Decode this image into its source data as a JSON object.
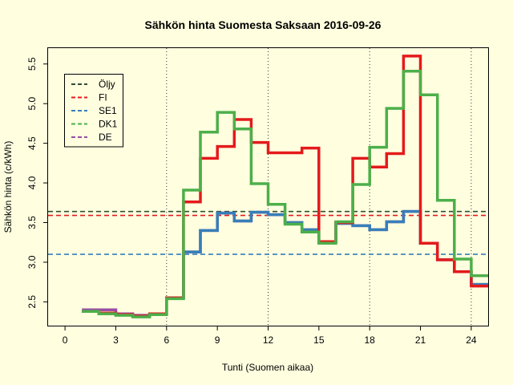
{
  "chart_data": {
    "type": "line",
    "title": "Sähkön hinta Suomesta Saksaan 2016-09-26",
    "xlabel": "Tunti (Suomen aikaa)",
    "ylabel": "Sähkön hinta (c/kWh)",
    "xlim": [
      -1,
      25
    ],
    "ylim": [
      2.2,
      5.7
    ],
    "xticks": [
      0,
      3,
      6,
      9,
      12,
      15,
      18,
      21,
      24
    ],
    "yticks": [
      2.5,
      3.0,
      3.5,
      4.0,
      4.5,
      5.0,
      5.5
    ],
    "vlines": [
      6,
      12,
      18,
      24
    ],
    "legend_position": "top-left",
    "legend": [
      {
        "name": "Öljy",
        "color": "#2f4f2f"
      },
      {
        "name": "FI",
        "color": "#e41a1c"
      },
      {
        "name": "SE1",
        "color": "#377eb8"
      },
      {
        "name": "DK1",
        "color": "#4daf4a"
      },
      {
        "name": "DE",
        "color": "#984ea3"
      }
    ],
    "hlines": [
      {
        "name": "Öljy",
        "color": "#2f4f2f",
        "value": 3.64
      },
      {
        "name": "FI",
        "color": "#e41a1c",
        "value": 3.59
      },
      {
        "name": "SE1",
        "color": "#377eb8",
        "value": 3.1
      }
    ],
    "x": [
      1,
      2,
      3,
      4,
      5,
      6,
      7,
      8,
      9,
      10,
      11,
      12,
      13,
      14,
      15,
      16,
      17,
      18,
      19,
      20,
      21,
      22,
      23,
      24,
      25
    ],
    "series": [
      {
        "name": "DE",
        "color": "#984ea3",
        "values": [
          2.4,
          2.4,
          2.35,
          2.33,
          2.35,
          2.55,
          3.13,
          3.4,
          3.62,
          3.52,
          3.63,
          3.6,
          3.5,
          3.41,
          3.26,
          3.49,
          3.46,
          3.41,
          3.51,
          3.64,
          3.24,
          3.03,
          2.88,
          2.72,
          2.72
        ]
      },
      {
        "name": "SE1",
        "color": "#377eb8",
        "values": [
          2.38,
          2.36,
          2.34,
          2.32,
          2.35,
          2.55,
          3.13,
          3.4,
          3.62,
          3.52,
          3.63,
          3.6,
          3.5,
          3.41,
          3.26,
          3.49,
          3.46,
          3.41,
          3.51,
          3.64,
          3.24,
          3.03,
          2.88,
          2.72,
          2.72
        ]
      },
      {
        "name": "FI",
        "color": "#e41a1c",
        "values": [
          2.38,
          2.36,
          2.34,
          2.32,
          2.35,
          2.55,
          3.76,
          4.31,
          4.46,
          4.8,
          4.51,
          4.38,
          4.38,
          4.44,
          3.26,
          3.5,
          4.31,
          4.2,
          4.37,
          5.6,
          3.24,
          3.03,
          2.88,
          2.7,
          2.7
        ]
      },
      {
        "name": "DK1",
        "color": "#4daf4a",
        "values": [
          2.38,
          2.35,
          2.33,
          2.31,
          2.34,
          2.54,
          3.91,
          4.64,
          4.89,
          4.68,
          3.99,
          3.73,
          3.48,
          3.38,
          3.24,
          3.51,
          3.98,
          4.45,
          4.94,
          5.41,
          5.11,
          3.78,
          3.04,
          2.83,
          2.83
        ]
      }
    ]
  }
}
